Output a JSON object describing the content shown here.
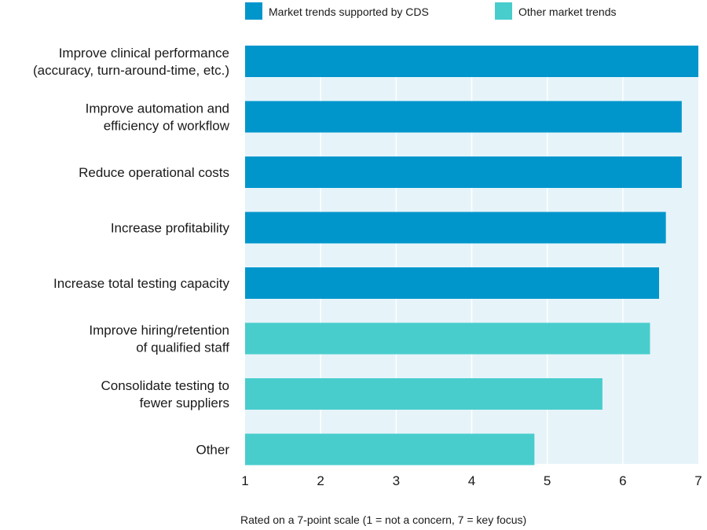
{
  "chart_data": {
    "type": "bar",
    "orientation": "horizontal",
    "categories": [
      [
        "Improve clinical performance",
        "(accuracy, turn-around-time, etc.)"
      ],
      [
        "Improve automation and",
        "efficiency of workflow"
      ],
      [
        "Reduce operational costs"
      ],
      [
        "Increase profitability"
      ],
      [
        "Increase total testing capacity"
      ],
      [
        "Improve hiring/retention",
        "of qualified staff"
      ],
      [
        "Consolidate testing to",
        "fewer suppliers"
      ],
      [
        "Other"
      ]
    ],
    "values": [
      7.0,
      6.78,
      6.78,
      6.57,
      6.48,
      6.36,
      5.73,
      4.83
    ],
    "series_membership": [
      0,
      0,
      0,
      0,
      0,
      1,
      1,
      1
    ],
    "series": [
      {
        "name": "Market trends supported by CDS",
        "color": "#0096CC"
      },
      {
        "name": "Other market trends",
        "color": "#48CDCC"
      }
    ],
    "xlim": [
      1,
      7
    ],
    "xticks": [
      "1",
      "2",
      "3",
      "4",
      "5",
      "6",
      "7"
    ],
    "xlabel": "Rated on a 7-point scale (1 = not a concern, 7 = key focus)",
    "grid": true,
    "legend_position": "top",
    "plot_background": "#E6F4FA",
    "gridline_color": "#FFFFFF"
  }
}
